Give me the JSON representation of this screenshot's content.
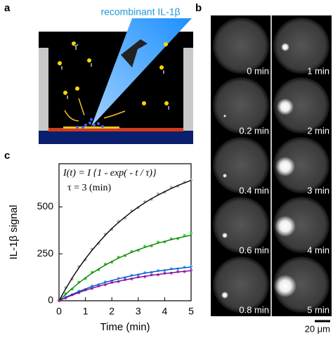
{
  "panel_a": {
    "label": "a",
    "caption": "recombinant IL-1β"
  },
  "panel_b": {
    "label": "b",
    "frames": [
      "0 min",
      "0.2 min",
      "0.4 min",
      "0.6 min",
      "0.8 min",
      "1 min",
      "2 min",
      "3 min",
      "4 min",
      "5 min"
    ],
    "scale_bar": "20 μm"
  },
  "chart_data": {
    "type": "scatter",
    "label": "c",
    "equation": "I(t) = I {1 - exp( - t / τ)}",
    "tau_text": "τ = 3 (min)",
    "x_label": "Time (min)",
    "y_label": "IL-1β signal",
    "x": [
      0,
      0.25,
      0.5,
      0.75,
      1,
      1.25,
      1.5,
      1.75,
      2,
      2.25,
      2.5,
      2.75,
      3,
      3.25,
      3.5,
      3.75,
      4,
      4.25,
      4.5,
      4.75,
      5
    ],
    "xlim": [
      0,
      5
    ],
    "xticks": [
      0,
      1,
      2,
      3,
      4,
      5
    ],
    "ylim": [
      0,
      730
    ],
    "yticks": [
      0,
      250,
      500
    ],
    "series": [
      {
        "mode": "markers",
        "color": "#b0b0b0",
        "values": [
          0,
          70,
          115,
          182,
          218,
          275,
          305,
          355,
          380,
          422,
          440,
          480,
          495,
          528,
          540,
          570,
          578,
          605,
          610,
          632,
          645
        ]
      },
      {
        "mode": "markers",
        "color": "#33dd33",
        "values": [
          0,
          38,
          62,
          99,
          118,
          152,
          165,
          195,
          205,
          232,
          240,
          262,
          268,
          290,
          292,
          312,
          313,
          330,
          331,
          348,
          360
        ]
      },
      {
        "mode": "markers",
        "color": "#33ccee",
        "values": [
          0,
          20,
          32,
          52,
          60,
          79,
          85,
          101,
          105,
          120,
          123,
          136,
          138,
          150,
          151,
          161,
          161,
          171,
          170,
          179,
          183
        ]
      },
      {
        "mode": "markers",
        "color": "#dd33dd",
        "values": [
          0,
          14,
          32,
          42,
          58,
          65,
          79,
          85,
          98,
          102,
          113,
          116,
          127,
          128,
          138,
          138,
          147,
          147,
          155,
          155,
          162
        ]
      },
      {
        "mode": "line",
        "color": "#000000",
        "values": [
          0,
          63,
          122,
          175,
          224,
          269,
          310,
          349,
          385,
          417,
          446,
          474,
          499,
          522,
          544,
          563,
          581,
          598,
          614,
          628,
          641
        ]
      },
      {
        "mode": "line",
        "color": "#117711",
        "values": [
          0,
          34,
          66,
          95,
          122,
          147,
          169,
          190,
          209,
          227,
          243,
          258,
          272,
          284,
          296,
          307,
          316,
          326,
          334,
          342,
          349
        ]
      },
      {
        "mode": "line",
        "color": "#1144cc",
        "values": [
          0,
          18,
          34,
          49,
          63,
          76,
          87,
          98,
          108,
          117,
          125,
          133,
          140,
          147,
          153,
          158,
          163,
          168,
          172,
          176,
          180
        ]
      },
      {
        "mode": "line",
        "color": "#661188",
        "values": [
          0,
          16,
          30,
          44,
          56,
          67,
          77,
          87,
          96,
          104,
          111,
          118,
          125,
          130,
          136,
          140,
          145,
          149,
          153,
          157,
          160
        ]
      }
    ]
  }
}
